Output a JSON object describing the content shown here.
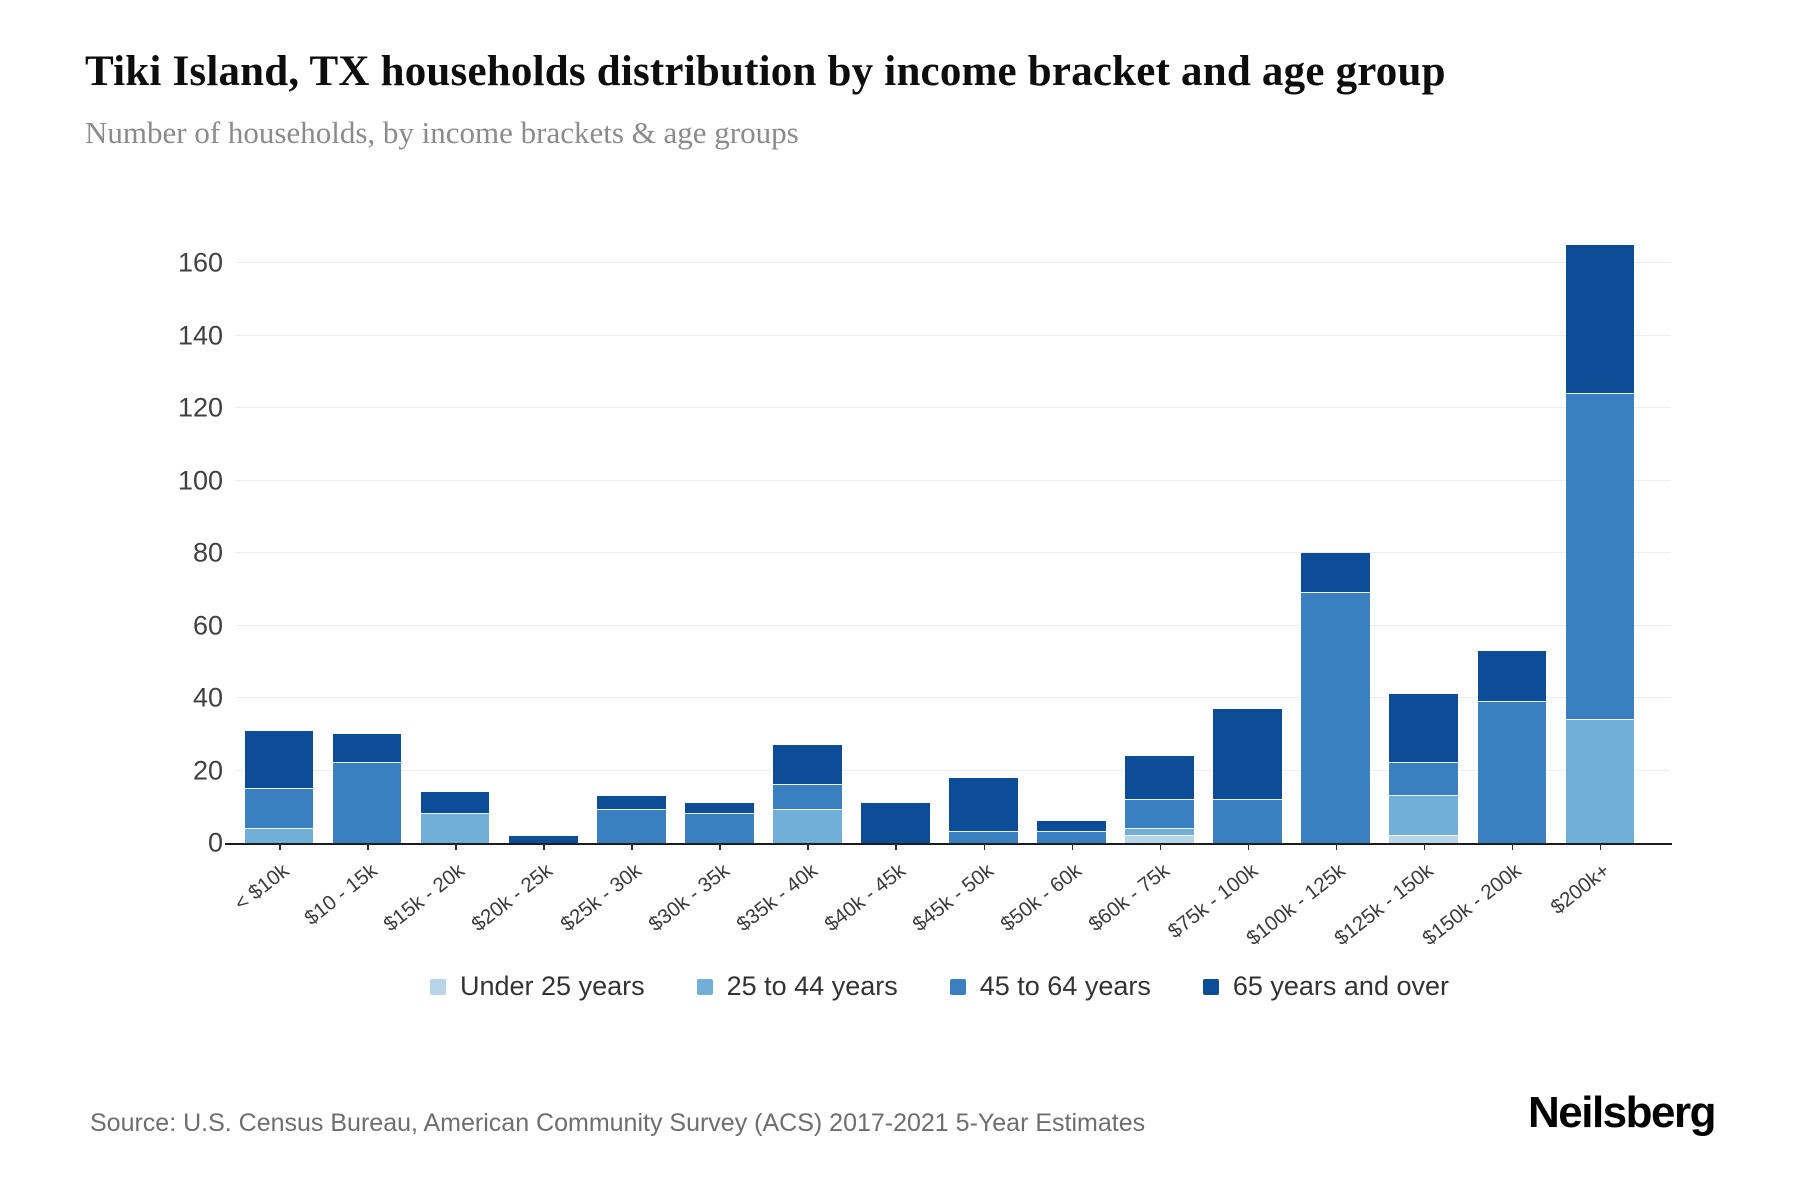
{
  "header": {
    "title": "Tiki Island, TX households distribution by income bracket and age group",
    "subtitle": "Number of households, by income brackets & age groups"
  },
  "chart_data": {
    "type": "bar",
    "stacked": true,
    "title": "Tiki Island, TX households distribution by income bracket and age group",
    "xlabel": "",
    "ylabel": "Number of households",
    "ylim": [
      0,
      160
    ],
    "yticks": [
      0,
      20,
      40,
      60,
      80,
      100,
      120,
      140,
      160
    ],
    "grid": true,
    "legend_position": "bottom",
    "categories": [
      "< $10k",
      "$10 - 15k",
      "$15k - 20k",
      "$20k - 25k",
      "$25k - 30k",
      "$30k - 35k",
      "$35k - 40k",
      "$40k - 45k",
      "$45k - 50k",
      "$50k - 60k",
      "$60k - 75k",
      "$75k - 100k",
      "$100k - 125k",
      "$125k - 150k",
      "$150k - 200k",
      "$200k+"
    ],
    "series": [
      {
        "name": "Under 25 years",
        "color": "#b8d4e9",
        "values": [
          0,
          0,
          0,
          0,
          0,
          0,
          0,
          0,
          0,
          0,
          2,
          0,
          0,
          2,
          0,
          0
        ]
      },
      {
        "name": "25 to 44 years",
        "color": "#71afd9",
        "values": [
          4,
          0,
          8,
          0,
          0,
          0,
          9,
          0,
          0,
          0,
          2,
          0,
          0,
          11,
          0,
          34
        ]
      },
      {
        "name": "45 to 64 years",
        "color": "#3a80c1",
        "values": [
          11,
          22,
          0,
          0,
          9,
          8,
          7,
          0,
          3,
          3,
          8,
          12,
          69,
          9,
          39,
          90
        ]
      },
      {
        "name": "65 years and over",
        "color": "#0d4d97",
        "values": [
          16,
          8,
          6,
          2,
          4,
          3,
          11,
          11,
          15,
          3,
          12,
          25,
          11,
          19,
          14,
          41
        ]
      }
    ],
    "totals": [
      31,
      30,
      14,
      2,
      13,
      11,
      27,
      11,
      18,
      6,
      24,
      37,
      80,
      41,
      53,
      165
    ]
  },
  "footer": {
    "source": "Source: U.S. Census Bureau, American Community Survey (ACS) 2017-2021 5-Year Estimates",
    "brand": "Neilsberg"
  }
}
